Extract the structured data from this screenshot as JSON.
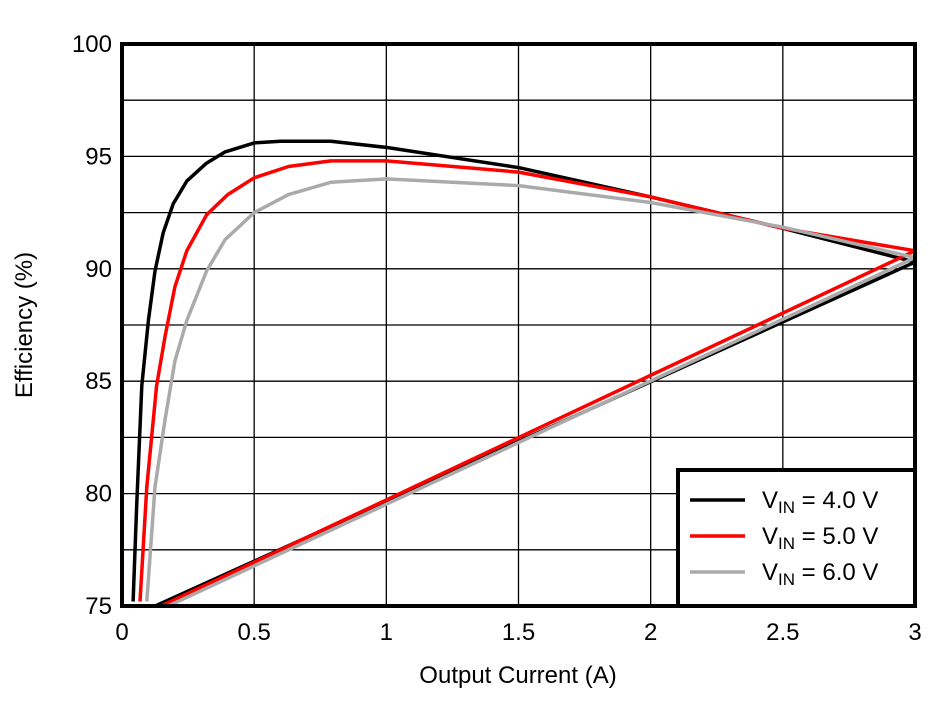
{
  "chart_data": {
    "type": "line",
    "title": "",
    "xlabel": "Output Current (A)",
    "ylabel": "Efficiency (%)",
    "xlim": [
      0,
      3
    ],
    "ylim": [
      75,
      100
    ],
    "xticks": [
      0,
      0.5,
      1,
      1.5,
      2,
      2.5,
      3
    ],
    "xtick_labels": [
      "0",
      "0.5",
      "1",
      "1.5",
      "2",
      "2.5",
      "3"
    ],
    "yticks": [
      75,
      80,
      85,
      90,
      95,
      100
    ],
    "ytick_labels": [
      "75",
      "80",
      "85",
      "90",
      "95",
      "100"
    ],
    "grid": true,
    "legend_placement": "bottom-right",
    "series": [
      {
        "name": "V_IN = 4.0 V",
        "name_main": "V",
        "name_sub": "IN",
        "name_rest": " = 4.0 V",
        "color": "#000000",
        "x": [
          0.042,
          0.056,
          0.075,
          0.1,
          0.125,
          0.156,
          0.194,
          0.245,
          0.32,
          0.39,
          0.5,
          0.6,
          0.79,
          1.0,
          1.5,
          2.0,
          2.5,
          3.0
        ],
        "y": [
          75.2,
          79.6,
          84.8,
          87.7,
          89.9,
          91.6,
          92.9,
          93.9,
          94.7,
          95.2,
          95.6,
          95.67,
          95.67,
          95.4,
          94.5,
          93.2,
          91.8,
          90.3
        ]
      },
      {
        "name": "V_IN = 5.0 V",
        "name_main": "V",
        "name_sub": "IN",
        "name_rest": " = 5.0 V",
        "color": "#ff0000",
        "x": [
          0.068,
          0.094,
          0.131,
          0.163,
          0.2,
          0.245,
          0.32,
          0.4,
          0.5,
          0.63,
          0.79,
          1.0,
          1.5,
          2.0,
          2.5,
          3.0
        ],
        "y": [
          75.2,
          80.3,
          84.8,
          87.0,
          89.2,
          90.8,
          92.4,
          93.3,
          94.05,
          94.55,
          94.8,
          94.8,
          94.3,
          93.2,
          91.8,
          90.8
        ]
      },
      {
        "name": "V_IN = 6.0 V",
        "name_main": "V",
        "name_sub": "IN",
        "name_rest": " = 6.0 V",
        "color": "#aaaaaa",
        "x": [
          0.094,
          0.125,
          0.163,
          0.2,
          0.245,
          0.32,
          0.39,
          0.5,
          0.63,
          0.79,
          1.0,
          1.5,
          2.0,
          2.5,
          3.0
        ],
        "y": [
          75.2,
          80.3,
          83.3,
          85.9,
          87.7,
          89.9,
          91.3,
          92.5,
          93.3,
          93.85,
          94.0,
          93.7,
          92.95,
          91.85,
          90.5
        ]
      }
    ]
  }
}
